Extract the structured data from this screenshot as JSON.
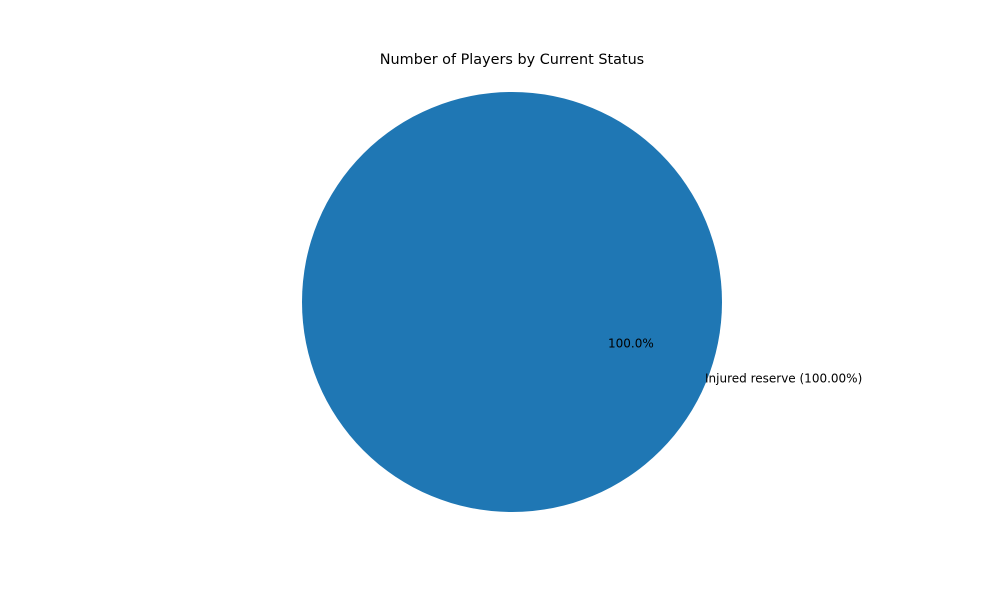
{
  "chart_data": {
    "type": "pie",
    "title": "Number of Players by Current Status",
    "slices": [
      {
        "label": "Injured reserve (100.00%)",
        "percent_label": "100.0%",
        "value": 100.0,
        "color": "#1f77b4"
      }
    ],
    "legend": "none"
  }
}
